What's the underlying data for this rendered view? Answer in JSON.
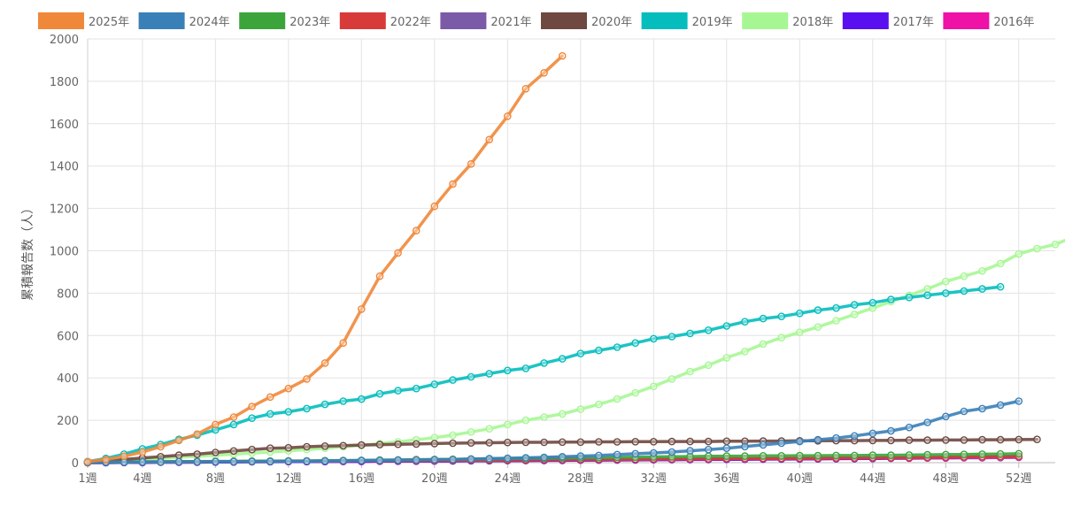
{
  "chart_data": {
    "type": "line",
    "ylabel": "累積報告数（人）",
    "xlabel": "",
    "ylim": [
      0,
      2000
    ],
    "yticks": [
      "0",
      "200",
      "400",
      "600",
      "800",
      "1000",
      "1200",
      "1400",
      "1600",
      "1800",
      "2000"
    ],
    "xlim": [
      1,
      54
    ],
    "xticks": [
      {
        "x": 1,
        "label": "1週"
      },
      {
        "x": 4,
        "label": "4週"
      },
      {
        "x": 8,
        "label": "8週"
      },
      {
        "x": 12,
        "label": "12週"
      },
      {
        "x": 16,
        "label": "16週"
      },
      {
        "x": 20,
        "label": "20週"
      },
      {
        "x": 24,
        "label": "24週"
      },
      {
        "x": 28,
        "label": "28週"
      },
      {
        "x": 32,
        "label": "32週"
      },
      {
        "x": 36,
        "label": "36週"
      },
      {
        "x": 40,
        "label": "40週"
      },
      {
        "x": 44,
        "label": "44週"
      },
      {
        "x": 48,
        "label": "48週"
      },
      {
        "x": 52,
        "label": "52週"
      }
    ],
    "grid": true,
    "legend_position": "top",
    "series": [
      {
        "name": "2016年",
        "color": "#ee12a6",
        "values": [
          0,
          0,
          1,
          1,
          2,
          2,
          3,
          3,
          4,
          4,
          5,
          5,
          5,
          6,
          6,
          6,
          7,
          7,
          8,
          8,
          9,
          9,
          10,
          10,
          11,
          11,
          12,
          12,
          13,
          13,
          14,
          14,
          15,
          15,
          16,
          16,
          17,
          17,
          18,
          18,
          19,
          19,
          20,
          20,
          21,
          21,
          22,
          22,
          23,
          23,
          24,
          25
        ]
      },
      {
        "name": "2017年",
        "color": "#5a0ff0",
        "values": [
          0,
          0,
          1,
          1,
          2,
          2,
          2,
          3,
          3,
          4,
          4,
          5,
          5,
          5,
          6,
          6,
          7,
          7,
          7,
          8,
          8,
          9,
          9,
          10,
          10,
          11,
          11,
          12,
          12,
          13,
          13,
          14,
          14,
          15,
          15,
          16,
          16,
          17,
          17,
          18,
          18,
          19,
          19,
          20,
          21,
          22,
          23,
          24,
          25,
          26,
          27,
          28
        ]
      },
      {
        "name": "2018年",
        "color": "#a6f793",
        "values": [
          2,
          6,
          10,
          15,
          20,
          25,
          30,
          35,
          40,
          45,
          50,
          56,
          62,
          68,
          75,
          82,
          90,
          98,
          108,
          118,
          130,
          145,
          160,
          180,
          200,
          215,
          230,
          252,
          275,
          300,
          330,
          360,
          395,
          430,
          460,
          495,
          525,
          560,
          590,
          615,
          640,
          670,
          700,
          730,
          760,
          790,
          820,
          855,
          880,
          905,
          940,
          985,
          1010,
          1030,
          1065
        ]
      },
      {
        "name": "2019年",
        "color": "#05bdbd",
        "values": [
          5,
          20,
          40,
          65,
          85,
          110,
          130,
          155,
          180,
          210,
          230,
          240,
          255,
          275,
          290,
          300,
          325,
          340,
          350,
          370,
          390,
          405,
          420,
          435,
          445,
          470,
          490,
          515,
          530,
          545,
          565,
          585,
          595,
          610,
          625,
          645,
          665,
          680,
          690,
          705,
          720,
          730,
          745,
          755,
          770,
          780,
          790,
          800,
          810,
          820,
          830
        ]
      },
      {
        "name": "2020年",
        "color": "#6f4840",
        "values": [
          3,
          8,
          15,
          22,
          28,
          35,
          40,
          48,
          55,
          62,
          68,
          70,
          75,
          78,
          80,
          83,
          85,
          87,
          88,
          90,
          92,
          93,
          94,
          95,
          96,
          96,
          97,
          97,
          98,
          98,
          99,
          99,
          100,
          100,
          100,
          101,
          101,
          102,
          102,
          103,
          103,
          104,
          104,
          105,
          105,
          106,
          106,
          107,
          107,
          108,
          108,
          109,
          110
        ]
      },
      {
        "name": "2021年",
        "color": "#7b5ba8",
        "values": [
          1,
          2,
          3,
          3,
          4,
          4,
          5,
          5,
          6,
          6,
          7,
          7,
          8,
          8,
          9,
          9,
          10,
          10,
          10,
          11,
          11,
          12,
          12,
          13,
          13,
          14,
          14,
          15,
          15,
          16,
          16,
          17,
          17,
          18,
          18,
          19,
          19,
          20,
          20,
          21,
          21,
          22,
          22,
          23,
          23,
          24,
          24,
          25,
          25,
          26,
          26,
          27
        ]
      },
      {
        "name": "2022年",
        "color": "#d83a3a",
        "values": [
          1,
          2,
          2,
          3,
          3,
          4,
          4,
          5,
          5,
          6,
          6,
          7,
          7,
          8,
          8,
          9,
          9,
          10,
          10,
          11,
          11,
          12,
          12,
          13,
          13,
          14,
          14,
          15,
          15,
          16,
          16,
          17,
          17,
          18,
          18,
          19,
          19,
          20,
          20,
          21,
          21,
          22,
          22,
          23,
          23,
          24,
          25,
          26,
          27,
          28,
          29,
          30
        ]
      },
      {
        "name": "2023年",
        "color": "#3ba43b",
        "values": [
          1,
          2,
          3,
          4,
          4,
          5,
          5,
          6,
          6,
          7,
          7,
          8,
          8,
          9,
          10,
          11,
          12,
          13,
          14,
          15,
          16,
          17,
          18,
          19,
          20,
          21,
          22,
          23,
          24,
          25,
          26,
          27,
          28,
          29,
          30,
          31,
          31,
          32,
          32,
          33,
          33,
          34,
          34,
          35,
          35,
          36,
          37,
          38,
          39,
          40,
          41,
          42
        ]
      },
      {
        "name": "2024年",
        "color": "#3a80b8",
        "values": [
          1,
          2,
          2,
          3,
          3,
          4,
          4,
          5,
          5,
          6,
          6,
          7,
          7,
          8,
          9,
          10,
          11,
          12,
          13,
          14,
          15,
          17,
          19,
          21,
          23,
          25,
          28,
          31,
          34,
          38,
          42,
          46,
          50,
          56,
          62,
          68,
          76,
          84,
          92,
          100,
          108,
          116,
          126,
          138,
          150,
          166,
          190,
          218,
          242,
          255,
          272,
          290
        ]
      },
      {
        "name": "2025年",
        "color": "#f0883a",
        "values": [
          5,
          15,
          30,
          50,
          75,
          105,
          135,
          180,
          215,
          265,
          310,
          350,
          395,
          470,
          565,
          725,
          880,
          990,
          1095,
          1210,
          1315,
          1410,
          1525,
          1635,
          1765,
          1840,
          1920
        ]
      }
    ],
    "legend_order": [
      "2025年",
      "2024年",
      "2023年",
      "2022年",
      "2021年",
      "2020年",
      "2019年",
      "2018年",
      "2017年",
      "2016年"
    ]
  }
}
